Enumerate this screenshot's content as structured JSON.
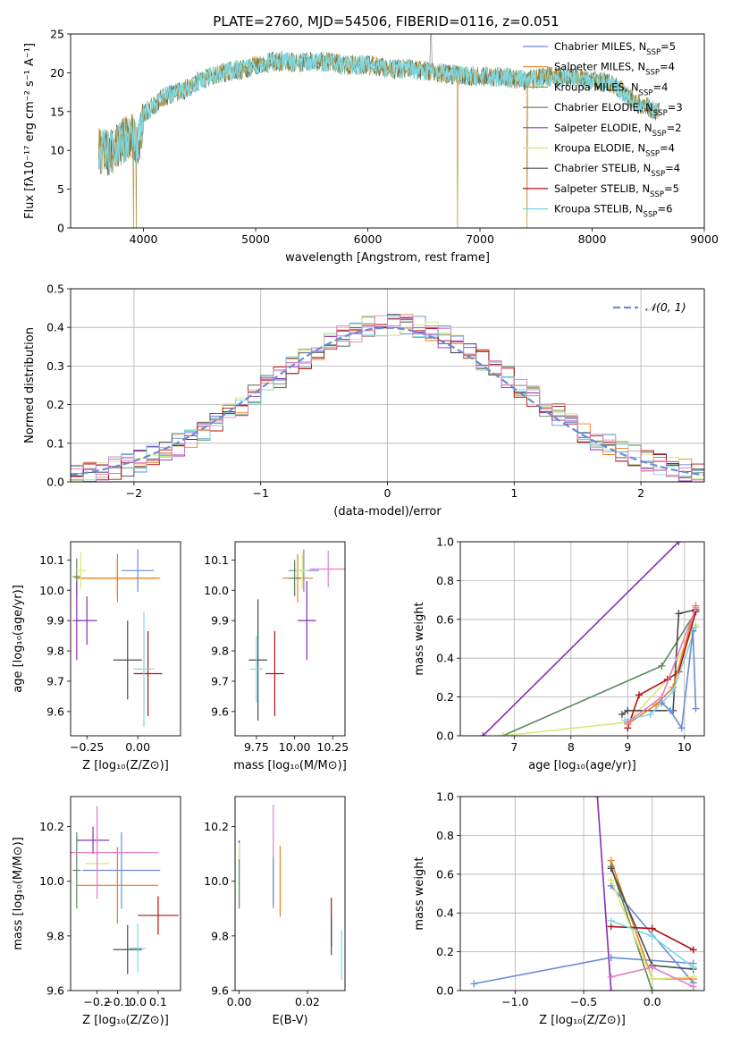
{
  "figure_title": "PLATE=2760, MJD=54506, FIBERID=0116, z=0.051",
  "palette": [
    "#6a8bd6",
    "#f07d1e",
    "#5a8a5e",
    "#8e2bb5",
    "#d8e87a",
    "#4a4a4a",
    "#b01010",
    "#7fd7e0",
    "#e37fc4"
  ],
  "legend_entries": [
    {
      "prefix": "Chabrier MILES, N",
      "sub": "SSP",
      "suffix": "=5",
      "color": "#6a8bd6"
    },
    {
      "prefix": "Salpeter MILES, N",
      "sub": "SSP",
      "suffix": "=4",
      "color": "#f07d1e"
    },
    {
      "prefix": "Kroupa MILES, N",
      "sub": "SSP",
      "suffix": "=4",
      "color": "#b08a2a"
    },
    {
      "prefix": "Chabrier ELODIE, N",
      "sub": "SSP",
      "suffix": "=3",
      "color": "#5a8a5e"
    },
    {
      "prefix": "Salpeter ELODIE, N",
      "sub": "SSP",
      "suffix": "=2",
      "color": "#8e2bb5"
    },
    {
      "prefix": "Kroupa ELODIE, N",
      "sub": "SSP",
      "suffix": "=4",
      "color": "#d8e87a"
    },
    {
      "prefix": "Chabrier STELIB, N",
      "sub": "SSP",
      "suffix": "=4",
      "color": "#4a4a4a"
    },
    {
      "prefix": "Salpeter STELIB, N",
      "sub": "SSP",
      "suffix": "=5",
      "color": "#b01010"
    },
    {
      "prefix": "Kroupa STELIB, N",
      "sub": "SSP",
      "suffix": "=6",
      "color": "#7fd7e0"
    }
  ],
  "chart_data": [
    {
      "id": "spectrum",
      "type": "line",
      "xlabel": "wavelength [Angstrom, rest frame]",
      "ylabel": "Flux [fλ10⁻¹⁷ erg cm⁻² s⁻¹ A⁻¹]",
      "xlim": [
        3350,
        9000
      ],
      "ylim": [
        0,
        25
      ],
      "xticks": [
        4000,
        5000,
        6000,
        7000,
        8000,
        9000
      ],
      "yticks": [
        0,
        5,
        10,
        15,
        20,
        25
      ],
      "grid": false,
      "continuum": {
        "x": [
          3600,
          3700,
          3800,
          3900,
          3950,
          4000,
          4100,
          4200,
          4300,
          4400,
          4500,
          4700,
          4900,
          5000,
          5200,
          5400,
          5600,
          5800,
          6000,
          6200,
          6400,
          6600,
          6800,
          7000,
          7200,
          7400,
          7600,
          7800,
          8000,
          8200,
          8400,
          8600
        ],
        "y": [
          10,
          9.5,
          11,
          12,
          10,
          14.5,
          16,
          17,
          17.5,
          18,
          19,
          20,
          20.5,
          21,
          21.5,
          21.3,
          21.5,
          21,
          21,
          20.5,
          20.5,
          20,
          19.7,
          19.5,
          19.5,
          19,
          19.5,
          19.5,
          19,
          18.5,
          16,
          15
        ]
      },
      "absorption_spikes_x": [
        3910,
        3935,
        6800,
        7420
      ],
      "emission_spike_x": 6563
    },
    {
      "id": "residuals",
      "type": "step",
      "xlabel": "(data-model)/error",
      "ylabel": "Normed distribution",
      "xlim": [
        -2.5,
        2.5
      ],
      "ylim": [
        0,
        0.5
      ],
      "xticks": [
        -2,
        -1,
        0,
        1,
        2
      ],
      "yticks": [
        0.0,
        0.1,
        0.2,
        0.3,
        0.4,
        0.5
      ],
      "grid": true,
      "reference": {
        "label": "𝒩(0, 1)",
        "color": "#6a8bd6",
        "style": "dashed"
      },
      "legend_placement": "top-right",
      "bin_width": 0.1
    },
    {
      "id": "age_vs_z",
      "type": "errorbar",
      "xlabel": "Z [log₁₀(Z/Z⊙)]",
      "ylabel": "age  [log₁₀(age/yr)]",
      "xlim": [
        -0.33,
        0.21
      ],
      "ylim": [
        9.52,
        10.16
      ],
      "xticks": [
        -0.25,
        0.0
      ],
      "yticks": [
        9.6,
        9.7,
        9.8,
        9.9,
        10.0,
        10.1
      ],
      "points": [
        {
          "x": 0.0,
          "y": 10.065,
          "xerr": 0.08,
          "yerr": 0.07,
          "c": 0
        },
        {
          "x": -0.1,
          "y": 10.04,
          "xerr": 0.2,
          "yerr": 0.08,
          "c": 1
        },
        {
          "x": -0.1,
          "y": 10.04,
          "xerr": 0.21,
          "yerr": 0.06,
          "c": 1
        },
        {
          "x": -0.3,
          "y": 10.045,
          "xerr": 0.02,
          "yerr": 0.06,
          "c": 2
        },
        {
          "x": -0.3,
          "y": 9.9,
          "xerr": 0.02,
          "yerr": 0.13,
          "c": 3
        },
        {
          "x": -0.25,
          "y": 9.9,
          "xerr": 0.05,
          "yerr": 0.08,
          "c": 3
        },
        {
          "x": -0.28,
          "y": 10.065,
          "xerr": 0.03,
          "yerr": 0.06,
          "c": 4
        },
        {
          "x": -0.05,
          "y": 9.77,
          "xerr": 0.07,
          "yerr": 0.13,
          "c": 5
        },
        {
          "x": 0.05,
          "y": 9.725,
          "xerr": 0.07,
          "yerr": 0.14,
          "c": 6
        },
        {
          "x": 0.03,
          "y": 9.74,
          "xerr": 0.05,
          "yerr": 0.19,
          "c": 7
        }
      ]
    },
    {
      "id": "age_vs_mass",
      "type": "errorbar",
      "xlabel": "mass [log₁₀(M/M⊙)]",
      "ylabel": "",
      "xlim": [
        9.61,
        10.33
      ],
      "ylim": [
        9.52,
        10.16
      ],
      "xticks": [
        9.75,
        10.0,
        10.25
      ],
      "yticks": [
        9.6,
        9.7,
        9.8,
        9.9,
        10.0,
        10.1
      ],
      "points": [
        {
          "x": 10.06,
          "y": 10.065,
          "xerr": 0.1,
          "yerr": 0.07,
          "c": 0
        },
        {
          "x": 10.22,
          "y": 10.07,
          "xerr": 0.12,
          "yerr": 0.06,
          "c": 8
        },
        {
          "x": 10.02,
          "y": 10.04,
          "xerr": 0.1,
          "yerr": 0.08,
          "c": 1
        },
        {
          "x": 10.0,
          "y": 10.04,
          "xerr": 0.04,
          "yerr": 0.06,
          "c": 2
        },
        {
          "x": 10.08,
          "y": 9.9,
          "xerr": 0.06,
          "yerr": 0.13,
          "c": 3
        },
        {
          "x": 10.05,
          "y": 10.065,
          "xerr": 0.04,
          "yerr": 0.06,
          "c": 4
        },
        {
          "x": 9.76,
          "y": 9.77,
          "xerr": 0.06,
          "yerr": 0.2,
          "c": 5
        },
        {
          "x": 9.87,
          "y": 9.725,
          "xerr": 0.06,
          "yerr": 0.14,
          "c": 6
        },
        {
          "x": 9.75,
          "y": 9.74,
          "xerr": 0.04,
          "yerr": 0.11,
          "c": 7
        }
      ]
    },
    {
      "id": "mass_vs_z",
      "type": "errorbar",
      "xlabel": "Z [log₁₀(Z/Z⊙)]",
      "ylabel": "mass [log₁₀(M/M⊙)]",
      "xlim": [
        -0.33,
        0.21
      ],
      "ylim": [
        9.6,
        10.31
      ],
      "xticks": [
        -0.2,
        -0.1,
        0.0,
        0.1
      ],
      "yticks": [
        9.6,
        9.8,
        10.0,
        10.2
      ],
      "points": [
        {
          "x": -0.08,
          "y": 10.04,
          "xerr": 0.19,
          "yerr": 0.14,
          "c": 0
        },
        {
          "x": -0.1,
          "y": 9.985,
          "xerr": 0.2,
          "yerr": 0.14,
          "c": 1
        },
        {
          "x": -0.3,
          "y": 10.04,
          "xerr": 0.02,
          "yerr": 0.14,
          "c": 2
        },
        {
          "x": -0.22,
          "y": 10.15,
          "xerr": 0.08,
          "yerr": 0.05,
          "c": 3
        },
        {
          "x": -0.2,
          "y": 10.065,
          "xerr": 0.06,
          "yerr": 0.08,
          "c": 4
        },
        {
          "x": -0.2,
          "y": 10.105,
          "xerr": 0.3,
          "yerr": 0.17,
          "c": 8
        },
        {
          "x": -0.05,
          "y": 9.75,
          "xerr": 0.07,
          "yerr": 0.09,
          "c": 5
        },
        {
          "x": 0.1,
          "y": 9.875,
          "xerr": 0.1,
          "yerr": 0.07,
          "c": 6
        },
        {
          "x": 0.0,
          "y": 9.755,
          "xerr": 0.04,
          "yerr": 0.09,
          "c": 7
        }
      ]
    },
    {
      "id": "mass_vs_ebv",
      "type": "errorbar",
      "xlabel": "E(B-V)",
      "ylabel": "",
      "xlim": [
        -0.0012,
        0.031
      ],
      "ylim": [
        9.6,
        10.31
      ],
      "xticks": [
        0.0,
        0.02
      ],
      "yticks": [
        9.6,
        9.8,
        10.0,
        10.2
      ],
      "points": [
        {
          "x": 0.0,
          "y": 10.1,
          "xerr": 0,
          "yerr": 0.05,
          "c": 3
        },
        {
          "x": 0.0,
          "y": 10.02,
          "xerr": 0,
          "yerr": 0.12,
          "c": 4
        },
        {
          "x": 0.0,
          "y": 9.99,
          "xerr": 0,
          "yerr": 0.09,
          "c": 2
        },
        {
          "x": 0.01,
          "y": 10.09,
          "xerr": 0,
          "yerr": 0.19,
          "c": 8
        },
        {
          "x": 0.01,
          "y": 10.0,
          "xerr": 0,
          "yerr": 0.09,
          "c": 0
        },
        {
          "x": 0.012,
          "y": 10.0,
          "xerr": 0,
          "yerr": 0.13,
          "c": 1
        },
        {
          "x": 0.027,
          "y": 9.85,
          "xerr": 0,
          "yerr": 0.09,
          "c": 6
        },
        {
          "x": 0.027,
          "y": 9.8,
          "xerr": 0,
          "yerr": 0.07,
          "c": 5
        },
        {
          "x": 0.03,
          "y": 9.73,
          "xerr": 0,
          "yerr": 0.09,
          "c": 7
        }
      ]
    },
    {
      "id": "weight_vs_age",
      "type": "line",
      "xlabel": "age  [log₁₀(age/yr)]",
      "ylabel": "mass weight",
      "xlim": [
        6.05,
        10.35
      ],
      "ylim": [
        0,
        1.0
      ],
      "xticks": [
        7,
        8,
        9,
        10
      ],
      "yticks": [
        0.0,
        0.2,
        0.4,
        0.6,
        0.8,
        1.0
      ],
      "grid": true,
      "series": [
        {
          "c": 3,
          "x": [
            6.45,
            9.9
          ],
          "y": [
            0.0,
            1.0
          ]
        },
        {
          "c": 2,
          "x": [
            6.8,
            9.6,
            10.2
          ],
          "y": [
            0.0,
            0.36,
            0.64
          ]
        },
        {
          "c": 4,
          "x": [
            6.8,
            9.0,
            9.7,
            10.2
          ],
          "y": [
            0.0,
            0.07,
            0.29,
            0.57
          ]
        },
        {
          "c": 5,
          "x": [
            8.9,
            9.0,
            9.8,
            9.9,
            10.2
          ],
          "y": [
            0.11,
            0.13,
            0.13,
            0.63,
            0.65
          ]
        },
        {
          "c": 6,
          "x": [
            9.0,
            9.2,
            9.7,
            9.9,
            10.2
          ],
          "y": [
            0.04,
            0.21,
            0.29,
            0.33,
            0.64
          ]
        },
        {
          "c": 1,
          "x": [
            9.0,
            9.5,
            9.8,
            10.2
          ],
          "y": [
            0.06,
            0.16,
            0.25,
            0.67
          ]
        },
        {
          "c": 7,
          "x": [
            8.95,
            9.4,
            9.8,
            10.2
          ],
          "y": [
            0.08,
            0.11,
            0.23,
            0.56
          ]
        },
        {
          "c": 8,
          "x": [
            9.0,
            9.6,
            10.2
          ],
          "y": [
            0.07,
            0.2,
            0.66
          ]
        },
        {
          "c": 0,
          "x": [
            9.6,
            9.75,
            9.95,
            10.15,
            10.2
          ],
          "y": [
            0.17,
            0.13,
            0.04,
            0.54,
            0.14
          ]
        }
      ]
    },
    {
      "id": "weight_vs_z",
      "type": "line",
      "xlabel": "Z [log₁₀(Z/Z⊙)]",
      "ylabel": "mass weight",
      "xlim": [
        -1.4,
        0.38
      ],
      "ylim": [
        0,
        1.0
      ],
      "xticks": [
        -1.0,
        -0.5,
        0.0
      ],
      "yticks": [
        0.0,
        0.2,
        0.4,
        0.6,
        0.8,
        1.0
      ],
      "grid": true,
      "series": [
        {
          "c": 3,
          "x": [
            -0.3,
            -0.4
          ],
          "y": [
            0.0,
            1.0
          ]
        },
        {
          "c": 0,
          "x": [
            -1.3,
            -0.3,
            0.3
          ],
          "y": [
            0.035,
            0.17,
            0.14
          ]
        },
        {
          "c": 0,
          "x": [
            -0.3,
            0.3
          ],
          "y": [
            0.54,
            0.04
          ]
        },
        {
          "c": 1,
          "x": [
            -0.3,
            0.0,
            0.3
          ],
          "y": [
            0.67,
            0.06,
            0.06
          ]
        },
        {
          "c": 2,
          "x": [
            -0.3,
            0.0,
            0.3
          ],
          "y": [
            0.64,
            0.0,
            0.0
          ]
        },
        {
          "c": 4,
          "x": [
            -0.3,
            0.0,
            0.3
          ],
          "y": [
            0.57,
            0.06,
            0.07
          ]
        },
        {
          "c": 5,
          "x": [
            -0.3,
            0.0,
            0.3
          ],
          "y": [
            0.63,
            0.13,
            0.11
          ]
        },
        {
          "c": 6,
          "x": [
            -0.3,
            0.0,
            0.3
          ],
          "y": [
            0.33,
            0.32,
            0.21
          ]
        },
        {
          "c": 7,
          "x": [
            -0.3,
            0.0,
            0.3
          ],
          "y": [
            0.36,
            0.28,
            0.12
          ]
        },
        {
          "c": 8,
          "x": [
            -0.3,
            0.0,
            0.3
          ],
          "y": [
            0.07,
            0.12,
            0.02
          ]
        }
      ]
    }
  ]
}
